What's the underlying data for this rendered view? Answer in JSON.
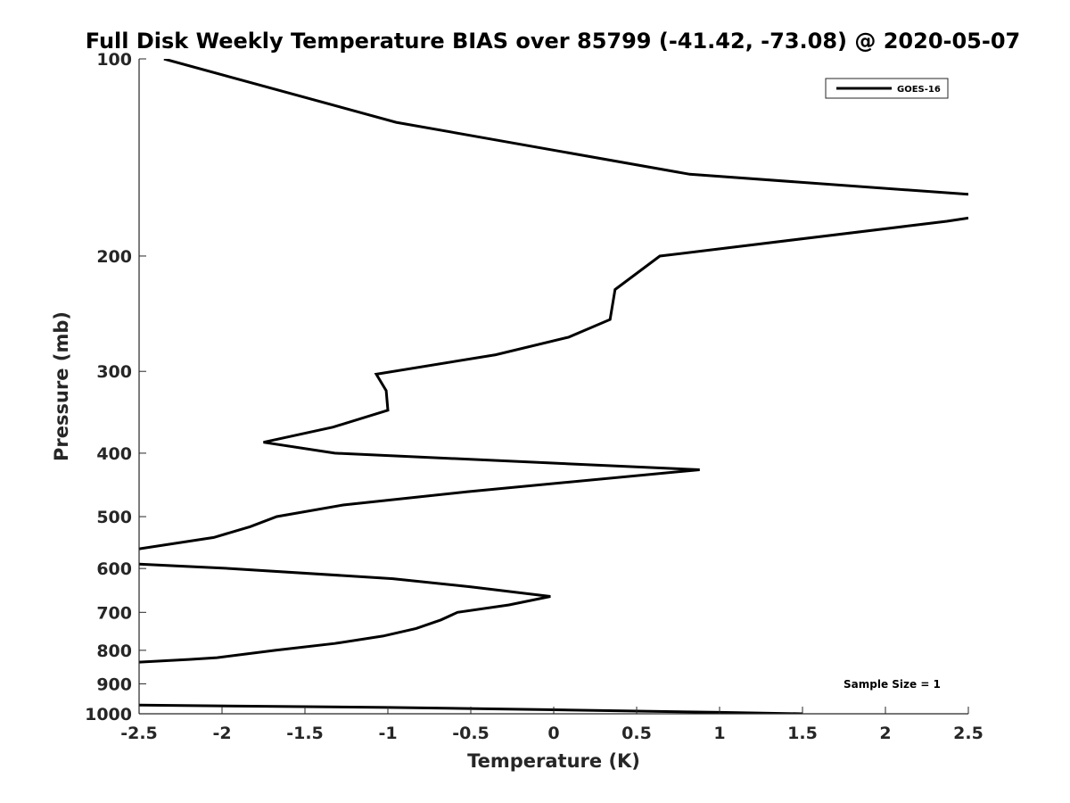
{
  "chart_data": {
    "type": "line",
    "title": "Full Disk Weekly Temperature BIAS over 85799 (-41.42, -73.08) @ 2020-05-07",
    "xlabel": "Temperature (K)",
    "ylabel": "Pressure (mb)",
    "xlim": [
      -2.5,
      2.5
    ],
    "ylim": [
      100,
      1000
    ],
    "yscale": "log",
    "y_reversed": true,
    "x_ticks": [
      -2.5,
      -2,
      -1.5,
      -1,
      -0.5,
      0,
      0.5,
      1,
      1.5,
      2,
      2.5
    ],
    "x_tick_labels": [
      "-2.5",
      "-2",
      "-1.5",
      "-1",
      "-0.5",
      "0",
      "0.5",
      "1",
      "1.5",
      "2",
      "2.5"
    ],
    "y_ticks": [
      100,
      200,
      300,
      400,
      500,
      600,
      700,
      800,
      900,
      1000
    ],
    "y_tick_labels": [
      "100",
      "200",
      "300",
      "400",
      "500",
      "600",
      "700",
      "800",
      "900",
      "1000"
    ],
    "legend": {
      "position": "top-right",
      "entries": [
        "GOES-16"
      ]
    },
    "annotation": "Sample Size = 1",
    "series": [
      {
        "name": "GOES-16",
        "color": "#000000",
        "segments": [
          [
            [
              -2.35,
              100
            ],
            [
              -0.95,
              125
            ],
            [
              0.82,
              150
            ],
            [
              2.5,
              161
            ]
          ],
          [
            [
              2.5,
              175
            ],
            [
              2.37,
              177
            ],
            [
              0.64,
              200
            ],
            [
              0.37,
              225
            ],
            [
              0.34,
              250
            ],
            [
              0.09,
              266
            ],
            [
              -0.35,
              283
            ],
            [
              -1.07,
              303
            ],
            [
              -1.01,
              321
            ],
            [
              -1.0,
              344
            ],
            [
              -1.33,
              365
            ],
            [
              -1.75,
              385
            ],
            [
              -1.32,
              400
            ],
            [
              0.88,
              424
            ],
            [
              -0.52,
              458
            ],
            [
              -1.27,
              480
            ],
            [
              -1.67,
              500
            ],
            [
              -1.83,
              518
            ],
            [
              -2.05,
              538
            ],
            [
              -2.5,
              560
            ]
          ],
          [
            [
              -2.5,
              591
            ],
            [
              -1.95,
              600
            ],
            [
              -0.97,
              622
            ],
            [
              -0.5,
              640
            ],
            [
              -0.02,
              662
            ],
            [
              -0.27,
              682
            ],
            [
              -0.58,
              700
            ],
            [
              -0.68,
              719
            ],
            [
              -0.83,
              741
            ],
            [
              -1.03,
              761
            ],
            [
              -1.32,
              781
            ],
            [
              -1.68,
              800
            ],
            [
              -2.03,
              821
            ],
            [
              -2.2,
              826
            ],
            [
              -2.5,
              834
            ]
          ],
          [
            [
              -2.5,
              970
            ],
            [
              -1.0,
              978
            ],
            [
              0.0,
              986
            ],
            [
              1.0,
              995
            ],
            [
              1.5,
              1000
            ]
          ]
        ]
      }
    ]
  }
}
